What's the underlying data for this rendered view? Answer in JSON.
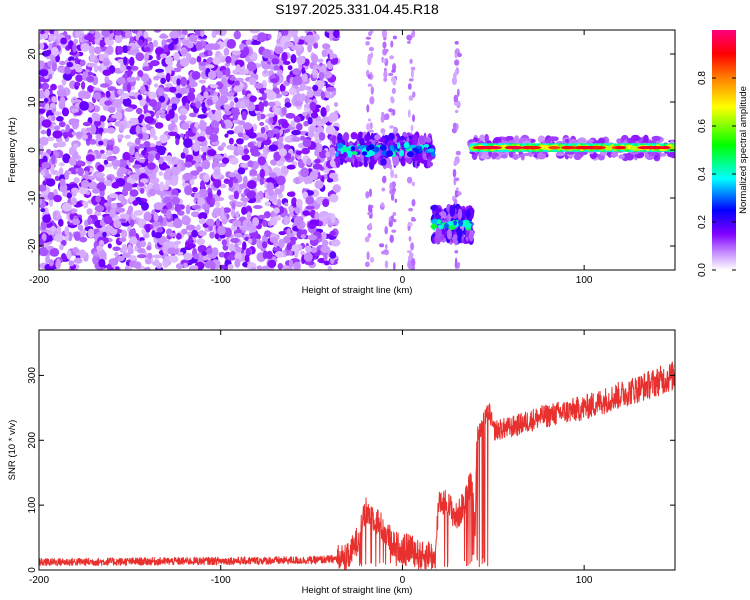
{
  "title": "S197.2025.331.04.45.R18",
  "chart_data": [
    {
      "type": "heatmap",
      "title": "S197.2025.331.04.45.R18",
      "xlabel": "Height of straight line (km)",
      "ylabel": "Frequency (Hz)",
      "xlim": [
        -200,
        150
      ],
      "ylim": [
        -25,
        25
      ],
      "xticks": [
        -200,
        -100,
        0,
        100
      ],
      "xtick_labels": [
        "-200",
        "-100",
        "0",
        "100"
      ],
      "yticks": [
        -20,
        -10,
        0,
        10,
        20
      ],
      "ytick_labels": [
        "-20",
        "-10",
        "0",
        "10",
        "20"
      ],
      "colorbar": {
        "label": "Normalized spectral amplitude",
        "range": [
          0,
          1
        ],
        "ticks": [
          0.0,
          0.2,
          0.4,
          0.6,
          0.8
        ],
        "tick_labels": [
          "0.0",
          "0.2",
          "0.4",
          "0.6",
          "0.8"
        ],
        "colormap": [
          "#ffffff",
          "#9000ff",
          "#0000ff",
          "#00ffff",
          "#00ff00",
          "#ffff00",
          "#ff8000",
          "#ff0000",
          "#ff0080"
        ]
      },
      "regions": [
        {
          "name": "noise",
          "x_range": [
            -200,
            -36
          ],
          "freq_range": [
            -25,
            25
          ],
          "amplitude": "0.0-0.15"
        },
        {
          "name": "onset signal",
          "x_range": [
            -36,
            17
          ],
          "center_freq_hz": 0,
          "amplitude": "0.2-0.5"
        },
        {
          "name": "frequency jump",
          "x_range": [
            17,
            38
          ],
          "center_freq_hz": -15.5,
          "amplitude": "0.3-0.5"
        },
        {
          "name": "stable carrier",
          "x_range": [
            38,
            150
          ],
          "center_freq_hz": 0.5,
          "amplitude": "0.6-0.95"
        }
      ]
    },
    {
      "type": "line",
      "xlabel": "Height of straight line (km)",
      "ylabel": "SNR (10 * v/v)",
      "xlim": [
        -200,
        150
      ],
      "ylim": [
        0,
        370
      ],
      "xticks": [
        -200,
        -100,
        0,
        100
      ],
      "xtick_labels": [
        "-200",
        "-100",
        "0",
        "100"
      ],
      "yticks": [
        0,
        100,
        200,
        300
      ],
      "ytick_labels": [
        "0",
        "100",
        "200",
        "300"
      ],
      "series": [
        {
          "name": "SNR",
          "color": "#e8312e",
          "x": [
            -200,
            -150,
            -100,
            -50,
            -30,
            -25,
            -20,
            -15,
            -10,
            -5,
            0,
            5,
            10,
            15,
            18,
            20,
            25,
            30,
            35,
            38,
            40,
            41,
            45,
            47,
            48,
            50,
            60,
            75,
            100,
            125,
            150
          ],
          "y": [
            12,
            13,
            14,
            15,
            18,
            45,
            90,
            80,
            60,
            40,
            32,
            35,
            20,
            25,
            15,
            110,
            100,
            80,
            110,
            140,
            50,
            210,
            230,
            240,
            245,
            215,
            220,
            235,
            250,
            275,
            300
          ],
          "noise_amplitude": 18
        }
      ]
    }
  ]
}
